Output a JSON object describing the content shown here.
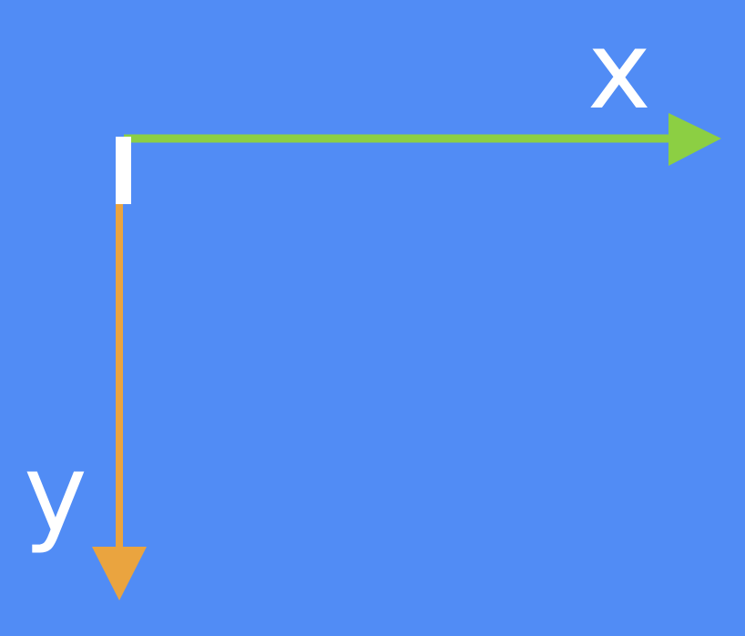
{
  "background_color": "#518cf5",
  "origin_marker": {
    "color": "#ffffff"
  },
  "x_axis": {
    "label": "x",
    "color": "#8ccf43",
    "label_color": "#ffffff"
  },
  "y_axis": {
    "label": "y",
    "color": "#eaa43f",
    "label_color": "#ffffff"
  }
}
